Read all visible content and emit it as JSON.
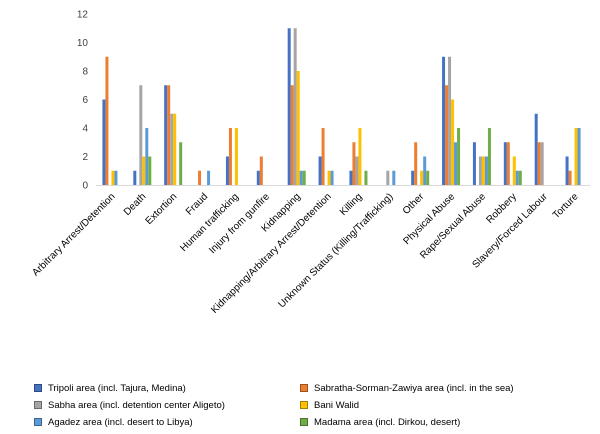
{
  "chart_data": {
    "type": "bar",
    "title": "",
    "xlabel": "",
    "ylabel": "",
    "ylim": [
      0,
      12
    ],
    "yticks": [
      0,
      2,
      4,
      6,
      8,
      10,
      12
    ],
    "grid": false,
    "legend_position": "bottom",
    "categories": [
      "Arbitrary Arrest/Detention",
      "Death",
      "Extortion",
      "Fraud",
      "Human trafficking",
      "Injury from gunfire",
      "Kidnapping",
      "Kidnapping/Arbitrary Arrest/Detention",
      "Killing",
      "Unknown Status (Killing/Trafficking)",
      "Other",
      "Physical Abuse",
      "Rape/Sexual Abuse",
      "Robbery",
      "Slavery/Forced Labour",
      "Torture"
    ],
    "series": [
      {
        "name": "Tripoli area (incl. Tajura, Medina)",
        "color": "#4472c4",
        "values": [
          6,
          1,
          7,
          0,
          2,
          1,
          11,
          2,
          1,
          0,
          1,
          9,
          3,
          3,
          5,
          2
        ]
      },
      {
        "name": "Sabratha-Sorman-Zawiya area (incl. in the sea)",
        "color": "#ed7d31",
        "values": [
          9,
          0,
          7,
          1,
          4,
          2,
          7,
          4,
          3,
          0,
          3,
          7,
          0,
          3,
          3,
          1
        ]
      },
      {
        "name": "Sabha area (incl. detention center Aligeto)",
        "color": "#a5a5a5",
        "values": [
          0,
          7,
          5,
          0,
          0,
          0,
          11,
          0,
          2,
          1,
          0,
          9,
          2,
          0,
          3,
          0
        ]
      },
      {
        "name": "Bani Walid",
        "color": "#ffc000",
        "values": [
          1,
          2,
          5,
          0,
          4,
          0,
          8,
          1,
          4,
          0,
          1,
          6,
          2,
          2,
          0,
          4
        ]
      },
      {
        "name": "Agadez area (incl. desert to Libya)",
        "color": "#5b9bd5",
        "values": [
          1,
          4,
          0,
          1,
          0,
          0,
          1,
          1,
          0,
          1,
          2,
          3,
          2,
          1,
          0,
          4
        ]
      },
      {
        "name": "Madama area (incl. Dirkou, desert)",
        "color": "#70ad47",
        "values": [
          0,
          2,
          3,
          0,
          0,
          0,
          1,
          0,
          1,
          0,
          1,
          4,
          4,
          1,
          0,
          0
        ]
      }
    ]
  }
}
